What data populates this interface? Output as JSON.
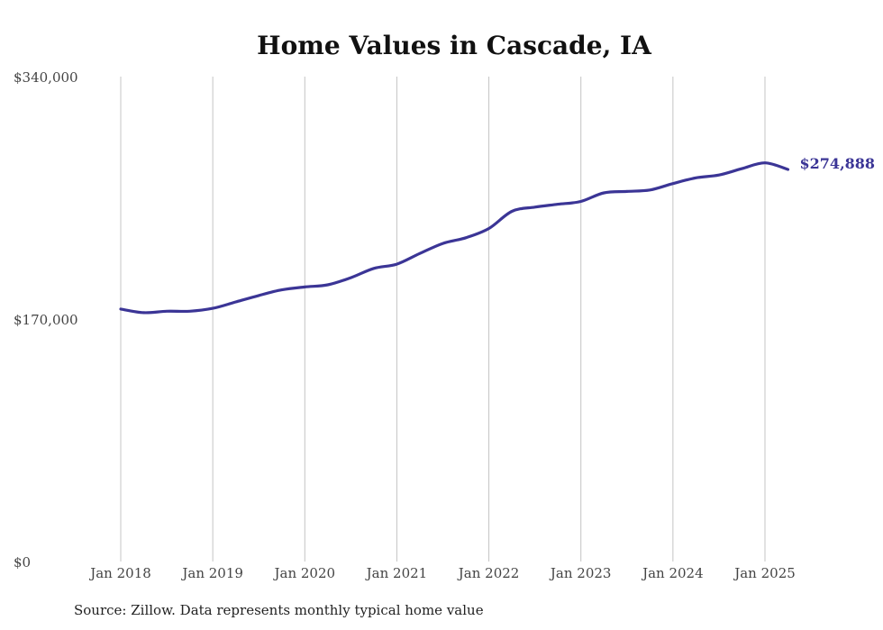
{
  "chart_data": {
    "type": "line",
    "title": "Home Values in Cascade, IA",
    "xlabel": "",
    "ylabel": "",
    "x_ticks": [
      "Jan 2018",
      "Jan 2019",
      "Jan 2020",
      "Jan 2021",
      "Jan 2022",
      "Jan 2023",
      "Jan 2024",
      "Jan 2025"
    ],
    "y_ticks": [
      "$340,000",
      "$170,000",
      "$0"
    ],
    "y_tick_values": [
      340000,
      170000,
      0
    ],
    "ylim": [
      0,
      340000
    ],
    "xlim": [
      "2018-01",
      "2025-04"
    ],
    "grid": "vertical",
    "legend": "none",
    "color": "#3b3596",
    "end_label": "$274,888",
    "series": [
      {
        "x": [
          "2018-01",
          "2018-04",
          "2018-07",
          "2018-10",
          "2019-01",
          "2019-04",
          "2019-07",
          "2019-10",
          "2020-01",
          "2020-04",
          "2020-07",
          "2020-10",
          "2021-01",
          "2021-04",
          "2021-07",
          "2021-10",
          "2022-01",
          "2022-04",
          "2022-07",
          "2022-10",
          "2023-01",
          "2023-04",
          "2023-07",
          "2023-10",
          "2024-01",
          "2024-04",
          "2024-07",
          "2024-10",
          "2025-01",
          "2025-04"
        ],
        "values": [
          177000,
          174500,
          175500,
          175500,
          177500,
          182000,
          186500,
          190500,
          192500,
          194000,
          199000,
          205500,
          208500,
          216000,
          223000,
          227000,
          233500,
          245500,
          248500,
          250500,
          252500,
          258500,
          259500,
          260500,
          265000,
          269000,
          271000,
          275500,
          279500,
          274888
        ]
      }
    ]
  },
  "source_text": "Source: Zillow. Data represents monthly typical home value"
}
